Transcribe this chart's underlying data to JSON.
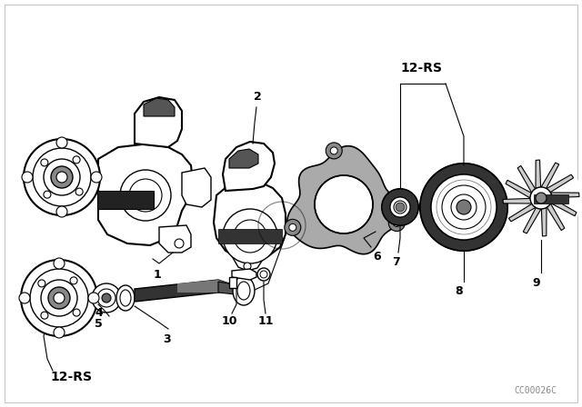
{
  "background_color": "#ffffff",
  "line_color": "#000000",
  "watermark": "CC00026C",
  "label_12rs_top": "12-RS",
  "label_12rs_bottom": "12-RS",
  "figsize": [
    6.4,
    4.48
  ],
  "dpi": 100,
  "border_color": "#cccccc"
}
